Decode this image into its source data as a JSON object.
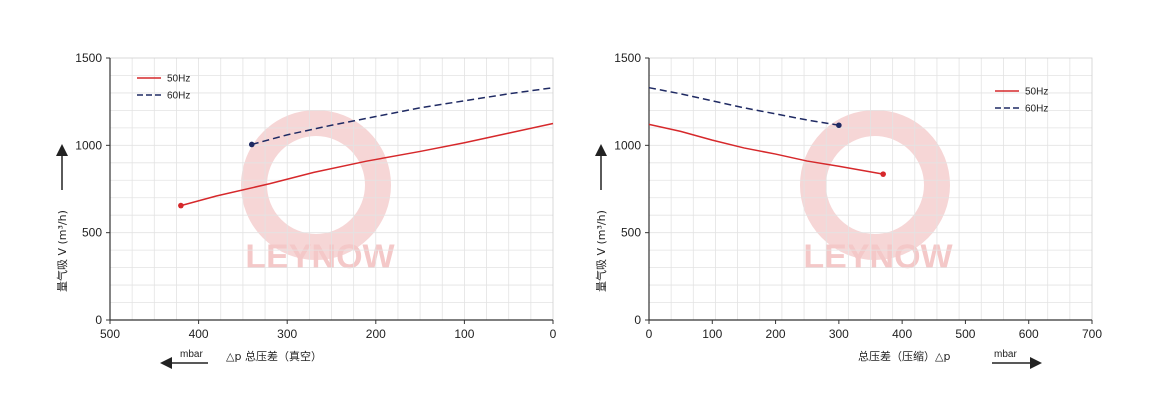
{
  "watermark": {
    "text": "LEYNOW",
    "color": "#f4c8c8"
  },
  "colors": {
    "50Hz": "#d6282b",
    "60Hz": "#1f2a63",
    "grid": "#e3e3e3",
    "axis": "#333333"
  },
  "chart_data": [
    {
      "type": "line",
      "xlim": [
        500,
        0
      ],
      "ylim": [
        0,
        1500
      ],
      "x_ticks": [
        "500",
        "400",
        "300",
        "200",
        "100",
        "0"
      ],
      "y_ticks": [
        "0",
        "500",
        "1000",
        "1500"
      ],
      "ylabel": "量气吸 V (m³/h)",
      "xlabel": "△p 总压差（真空）",
      "xunit": "mbar",
      "legend_position": "top-left",
      "grid": true,
      "series": [
        {
          "name": "50Hz",
          "style": "solid",
          "x": [
            420,
            380,
            320,
            270,
            210,
            150,
            100,
            50,
            0
          ],
          "y": [
            655,
            710,
            780,
            845,
            910,
            965,
            1015,
            1070,
            1125
          ]
        },
        {
          "name": "60Hz",
          "style": "dashed",
          "x": [
            340,
            300,
            250,
            200,
            150,
            100,
            50,
            0
          ],
          "y": [
            1005,
            1060,
            1115,
            1165,
            1215,
            1255,
            1295,
            1330
          ]
        }
      ]
    },
    {
      "type": "line",
      "xlim": [
        0,
        700
      ],
      "ylim": [
        0,
        1500
      ],
      "x_ticks": [
        "0",
        "100",
        "200",
        "300",
        "400",
        "500",
        "600",
        "700"
      ],
      "y_ticks": [
        "0",
        "500",
        "1000",
        "1500"
      ],
      "ylabel": "量气吸 V (m³/h)",
      "xlabel": "总压差（压缩）△p",
      "xunit": "mbar",
      "legend_position": "top-right",
      "grid": true,
      "series": [
        {
          "name": "50Hz",
          "style": "solid",
          "x": [
            0,
            50,
            100,
            150,
            200,
            250,
            300,
            370
          ],
          "y": [
            1120,
            1080,
            1030,
            985,
            950,
            910,
            880,
            835
          ]
        },
        {
          "name": "60Hz",
          "style": "dashed",
          "x": [
            0,
            50,
            100,
            150,
            200,
            250,
            300
          ],
          "y": [
            1330,
            1295,
            1255,
            1215,
            1180,
            1145,
            1115
          ]
        }
      ]
    }
  ]
}
